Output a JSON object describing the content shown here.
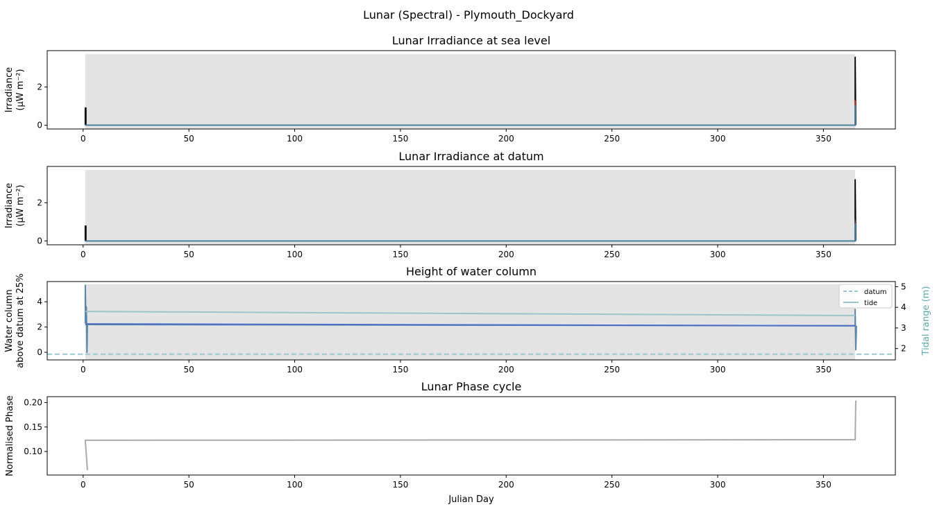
{
  "figure": {
    "title": "Lunar (Spectral) - Plymouth_Dockyard"
  },
  "chart_data": [
    {
      "type": "line",
      "title": "Lunar Irradiance at sea level",
      "ylabel_lines": [
        "Irradiance",
        "(µW m⁻²)"
      ],
      "xlabel": "",
      "xlim": [
        -17,
        384
      ],
      "ylim": [
        -0.2,
        3.9
      ],
      "xticks": [
        0,
        50,
        100,
        150,
        200,
        250,
        300,
        350
      ],
      "yticks": [
        0,
        2
      ],
      "shaded_span": {
        "x": [
          1,
          365
        ],
        "y": [
          -0.2,
          3.72
        ],
        "color": "#e4e4e4"
      },
      "series": [
        {
          "color": "#111111",
          "x": [
            1,
            1,
            1.3,
            1.3,
            365,
            365,
            365.3
          ],
          "y": [
            0,
            0.9,
            0.9,
            0,
            0,
            3.55,
            0
          ]
        },
        {
          "color": "#c0392b",
          "x": [
            365,
            365
          ],
          "y": [
            0,
            1.3
          ]
        },
        {
          "color": "#4a7fa0",
          "x": [
            1,
            365,
            365,
            365.2
          ],
          "y": [
            0,
            0,
            1.0,
            0
          ]
        }
      ]
    },
    {
      "type": "line",
      "title": "Lunar Irradiance at datum",
      "ylabel_lines": [
        "Irradiance",
        "(µW m⁻²)"
      ],
      "xlabel": "",
      "xlim": [
        -17,
        384
      ],
      "ylim": [
        -0.2,
        3.9
      ],
      "xticks": [
        0,
        50,
        100,
        150,
        200,
        250,
        300,
        350
      ],
      "yticks": [
        0,
        2
      ],
      "shaded_span": {
        "x": [
          1,
          365
        ],
        "y": [
          -0.2,
          3.72
        ],
        "color": "#e4e4e4"
      },
      "series": [
        {
          "color": "#111111",
          "x": [
            1,
            1,
            1.3,
            1.3,
            365,
            365,
            365.3
          ],
          "y": [
            0,
            0.78,
            0.78,
            0,
            0,
            3.2,
            0
          ]
        },
        {
          "color": "#6b3a3a",
          "x": [
            365,
            365
          ],
          "y": [
            0,
            1.1
          ]
        },
        {
          "color": "#4a7fa0",
          "x": [
            1,
            365,
            365,
            365.2
          ],
          "y": [
            0,
            0,
            0.9,
            0
          ]
        }
      ]
    },
    {
      "type": "line",
      "title": "Height of water column",
      "ylabel_lines": [
        "Water column",
        "above datum at 25%"
      ],
      "y2label": "Tidal range (m)",
      "y2label_color": "#5fa8a8",
      "xlabel": "",
      "xlim": [
        -17,
        384
      ],
      "ylim": [
        -0.6,
        5.6
      ],
      "y2lim": [
        1.45,
        5.25
      ],
      "xticks": [
        0,
        50,
        100,
        150,
        200,
        250,
        300,
        350
      ],
      "yticks": [
        0,
        2,
        4
      ],
      "y2ticks": [
        2,
        3,
        4,
        5
      ],
      "shaded_span": {
        "x": [
          1,
          365
        ],
        "y": [
          -0.6,
          5.4
        ],
        "color": "#e4e4e4"
      },
      "legend": {
        "position": "upper right",
        "entries": [
          {
            "label": "datum",
            "color": "#9cc9cf",
            "dash": true
          },
          {
            "label": "tide",
            "color": "#9cc4c8",
            "dash": false
          }
        ]
      },
      "series": [
        {
          "name": "datum",
          "color": "#9cc9cf",
          "dashed": true,
          "axis": "y",
          "x": [
            -17,
            384
          ],
          "y": [
            -0.15,
            -0.15
          ]
        },
        {
          "color": "#5b86a8",
          "axis": "y",
          "x": [
            1,
            1,
            1.3,
            1.5,
            1.8,
            2,
            365,
            365,
            365.3,
            365.6
          ],
          "y": [
            2.3,
            5.3,
            2.2,
            3.6,
            0,
            2.2,
            2.1,
            3.4,
            0.2,
            2.1
          ]
        },
        {
          "color": "#4a6fc7",
          "axis": "y",
          "x": [
            1,
            365
          ],
          "y": [
            2.25,
            2.1
          ]
        },
        {
          "name": "tide",
          "color": "#9cc4c8",
          "axis": "y2",
          "x": [
            1,
            365
          ],
          "y": [
            3.8,
            3.6
          ]
        }
      ]
    },
    {
      "type": "line",
      "title": "Lunar Phase cycle",
      "ylabel_lines": [
        "Normalised Phase"
      ],
      "xlabel": "Julian Day",
      "xlim": [
        -17,
        384
      ],
      "ylim": [
        0.052,
        0.212
      ],
      "xticks": [
        0,
        50,
        100,
        150,
        200,
        250,
        300,
        350
      ],
      "yticks": [
        0.1,
        0.15,
        0.2
      ],
      "ytick_labels": [
        "0.10",
        "0.15",
        "0.20"
      ],
      "series": [
        {
          "color": "#aaaaaa",
          "x": [
            2,
            1,
            1,
            365,
            365,
            365.3
          ],
          "y": [
            0.062,
            0.123,
            0.123,
            0.124,
            0.124,
            0.204
          ]
        }
      ]
    }
  ]
}
